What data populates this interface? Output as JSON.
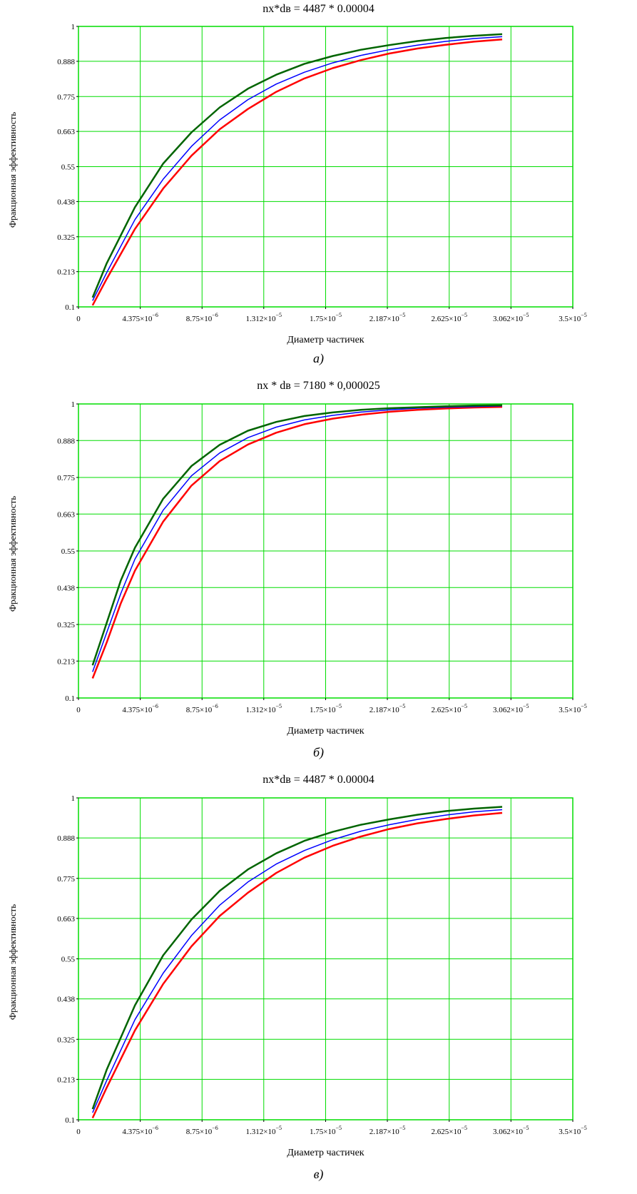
{
  "chart_data": [
    {
      "type": "line",
      "title": "nx*dв = 4487 * 0.00004",
      "xlabel": "Диаметр частичек",
      "ylabel": "Фракционная эффективность",
      "caption": "а)",
      "xlim": [
        0,
        3.5e-05
      ],
      "ylim": [
        0.1,
        1
      ],
      "x_ticks": [
        0,
        4.375e-06,
        8.75e-06,
        1.312e-05,
        1.75e-05,
        2.187e-05,
        2.625e-05,
        3.062e-05,
        3.5e-05
      ],
      "x_tick_labels": [
        {
          "m": "0",
          "e": ""
        },
        {
          "m": "4.375×10",
          "e": "−6"
        },
        {
          "m": "8.75×10",
          "e": "−6"
        },
        {
          "m": "1.312×10",
          "e": "−5"
        },
        {
          "m": "1.75×10",
          "e": "−5"
        },
        {
          "m": "2.187×10",
          "e": "−5"
        },
        {
          "m": "2.625×10",
          "e": "−5"
        },
        {
          "m": "3.062×10",
          "e": "−5"
        },
        {
          "m": "3.5×10",
          "e": "−5"
        }
      ],
      "y_ticks": [
        0.1,
        0.213,
        0.325,
        0.438,
        0.55,
        0.663,
        0.775,
        0.888,
        1
      ],
      "y_tick_labels": [
        "0.1",
        "0.213",
        "0.325",
        "0.438",
        "0.55",
        "0.663",
        "0.775",
        "0.888",
        "1"
      ],
      "grid": true,
      "grid_color": "#00dd00",
      "x": [
        1e-06,
        2e-06,
        4e-06,
        6e-06,
        8e-06,
        1e-05,
        1.2e-05,
        1.4e-05,
        1.6e-05,
        1.8e-05,
        2e-05,
        2.2e-05,
        2.4e-05,
        2.6e-05,
        2.8e-05,
        3e-05
      ],
      "series": [
        {
          "color": "#006400",
          "width": 2.5,
          "values": [
            0.13,
            0.24,
            0.42,
            0.56,
            0.66,
            0.74,
            0.8,
            0.845,
            0.88,
            0.905,
            0.925,
            0.94,
            0.953,
            0.963,
            0.97,
            0.975
          ]
        },
        {
          "color": "#0000ff",
          "width": 1.5,
          "values": [
            0.12,
            0.21,
            0.38,
            0.51,
            0.615,
            0.7,
            0.765,
            0.815,
            0.853,
            0.883,
            0.907,
            0.925,
            0.94,
            0.952,
            0.961,
            0.967
          ]
        },
        {
          "color": "#ff0000",
          "width": 2.5,
          "values": [
            0.105,
            0.19,
            0.35,
            0.48,
            0.585,
            0.67,
            0.735,
            0.79,
            0.833,
            0.866,
            0.892,
            0.913,
            0.929,
            0.941,
            0.951,
            0.958
          ]
        }
      ]
    },
    {
      "type": "line",
      "title": "nx * dв = 7180 * 0,000025",
      "xlabel": "Диаметр частичек",
      "ylabel": "Фракционная эффективность",
      "caption": "б)",
      "xlim": [
        0,
        3.5e-05
      ],
      "ylim": [
        0.1,
        1
      ],
      "x_ticks": [
        0,
        4.375e-06,
        8.75e-06,
        1.312e-05,
        1.75e-05,
        2.187e-05,
        2.625e-05,
        3.062e-05,
        3.5e-05
      ],
      "x_tick_labels": [
        {
          "m": "0",
          "e": ""
        },
        {
          "m": "4.375×10",
          "e": "−6"
        },
        {
          "m": "8.75×10",
          "e": "−6"
        },
        {
          "m": "1.312×10",
          "e": "−5"
        },
        {
          "m": "1.75×10",
          "e": "−5"
        },
        {
          "m": "2.187×10",
          "e": "−5"
        },
        {
          "m": "2.625×10",
          "e": "−5"
        },
        {
          "m": "3.062×10",
          "e": "−5"
        },
        {
          "m": "3.5×10",
          "e": "−5"
        }
      ],
      "y_ticks": [
        0.1,
        0.213,
        0.325,
        0.438,
        0.55,
        0.663,
        0.775,
        0.888,
        1
      ],
      "y_tick_labels": [
        "0.1",
        "0.213",
        "0.325",
        "0.438",
        "0.55",
        "0.663",
        "0.775",
        "0.888",
        "1"
      ],
      "grid": true,
      "grid_color": "#00dd00",
      "x": [
        1e-06,
        2e-06,
        3e-06,
        4e-06,
        6e-06,
        8e-06,
        1e-05,
        1.2e-05,
        1.4e-05,
        1.6e-05,
        1.8e-05,
        2e-05,
        2.2e-05,
        2.4e-05,
        2.6e-05,
        2.8e-05,
        3e-05
      ],
      "series": [
        {
          "color": "#006400",
          "width": 2.5,
          "values": [
            0.2,
            0.33,
            0.46,
            0.56,
            0.71,
            0.81,
            0.875,
            0.918,
            0.945,
            0.963,
            0.974,
            0.982,
            0.987,
            0.99,
            0.993,
            0.995,
            0.996
          ]
        },
        {
          "color": "#0000ff",
          "width": 1.5,
          "values": [
            0.18,
            0.3,
            0.42,
            0.525,
            0.675,
            0.78,
            0.85,
            0.897,
            0.929,
            0.951,
            0.965,
            0.975,
            0.982,
            0.987,
            0.99,
            0.992,
            0.994
          ]
        },
        {
          "color": "#ff0000",
          "width": 2.5,
          "values": [
            0.16,
            0.27,
            0.39,
            0.49,
            0.64,
            0.75,
            0.825,
            0.876,
            0.912,
            0.938,
            0.955,
            0.967,
            0.976,
            0.982,
            0.986,
            0.989,
            0.991
          ]
        }
      ]
    },
    {
      "type": "line",
      "title": "nx*dв = 4487 * 0.00004",
      "xlabel": "Диаметр частичек",
      "ylabel": "Фракционная эффективность",
      "caption": "в)",
      "xlim": [
        0,
        3.5e-05
      ],
      "ylim": [
        0.1,
        1
      ],
      "x_ticks": [
        0,
        4.375e-06,
        8.75e-06,
        1.312e-05,
        1.75e-05,
        2.187e-05,
        2.625e-05,
        3.062e-05,
        3.5e-05
      ],
      "x_tick_labels": [
        {
          "m": "0",
          "e": ""
        },
        {
          "m": "4.375×10",
          "e": "−6"
        },
        {
          "m": "8.75×10",
          "e": "−6"
        },
        {
          "m": "1.312×10",
          "e": "−5"
        },
        {
          "m": "1.75×10",
          "e": "−5"
        },
        {
          "m": "2.187×10",
          "e": "−5"
        },
        {
          "m": "2.625×10",
          "e": "−5"
        },
        {
          "m": "3.062×10",
          "e": "−5"
        },
        {
          "m": "3.5×10",
          "e": "−5"
        }
      ],
      "y_ticks": [
        0.1,
        0.213,
        0.325,
        0.438,
        0.55,
        0.663,
        0.775,
        0.888,
        1
      ],
      "y_tick_labels": [
        "0.1",
        "0.213",
        "0.325",
        "0.438",
        "0.55",
        "0.663",
        "0.775",
        "0.888",
        "1"
      ],
      "grid": true,
      "grid_color": "#00dd00",
      "x": [
        1e-06,
        2e-06,
        4e-06,
        6e-06,
        8e-06,
        1e-05,
        1.2e-05,
        1.4e-05,
        1.6e-05,
        1.8e-05,
        2e-05,
        2.2e-05,
        2.4e-05,
        2.6e-05,
        2.8e-05,
        3e-05
      ],
      "series": [
        {
          "color": "#006400",
          "width": 2.5,
          "values": [
            0.13,
            0.24,
            0.42,
            0.56,
            0.66,
            0.74,
            0.8,
            0.845,
            0.88,
            0.905,
            0.925,
            0.94,
            0.953,
            0.963,
            0.97,
            0.975
          ]
        },
        {
          "color": "#0000ff",
          "width": 1.5,
          "values": [
            0.12,
            0.21,
            0.38,
            0.51,
            0.615,
            0.7,
            0.765,
            0.815,
            0.853,
            0.883,
            0.907,
            0.925,
            0.94,
            0.952,
            0.961,
            0.967
          ]
        },
        {
          "color": "#ff0000",
          "width": 2.5,
          "values": [
            0.105,
            0.19,
            0.35,
            0.48,
            0.585,
            0.67,
            0.735,
            0.79,
            0.833,
            0.866,
            0.892,
            0.913,
            0.929,
            0.941,
            0.951,
            0.958
          ]
        }
      ]
    }
  ]
}
